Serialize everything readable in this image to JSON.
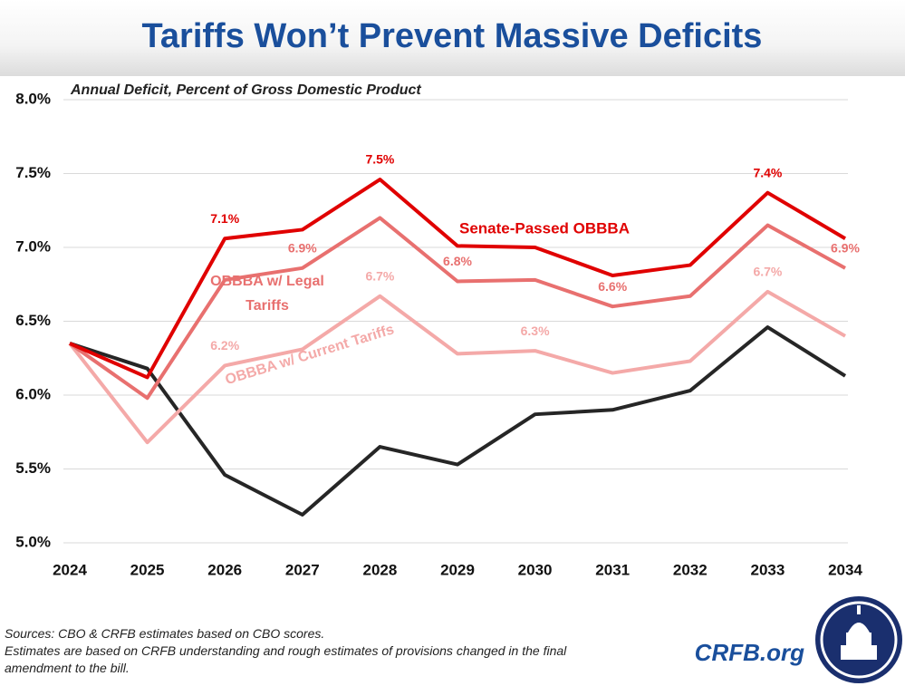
{
  "chart_data": {
    "type": "line",
    "title": "Tariffs Won’t Prevent Massive Deficits",
    "subtitle": "Annual Deficit, Percent of Gross Domestic Product",
    "categories": [
      "2024",
      "2025",
      "2026",
      "2027",
      "2028",
      "2029",
      "2030",
      "2031",
      "2032",
      "2033",
      "2034"
    ],
    "ylim": [
      5,
      8
    ],
    "yticks": [
      {
        "value": 5,
        "label": "5.0%"
      },
      {
        "value": 5.5,
        "label": "5.5%"
      },
      {
        "value": 6,
        "label": "6.0%"
      },
      {
        "value": 6.5,
        "label": "6.5%"
      },
      {
        "value": 7,
        "label": "7.0%"
      },
      {
        "value": 7.5,
        "label": "7.5%"
      },
      {
        "value": 8,
        "label": "8.0%"
      }
    ],
    "grid": true,
    "series": [
      {
        "name": "Senate-Passed OBBBA",
        "color": "#e00000",
        "values": [
          6.35,
          6.12,
          7.06,
          7.12,
          7.46,
          7.01,
          7.0,
          6.81,
          6.88,
          7.37,
          7.06
        ],
        "value_labels": [
          null,
          null,
          "7.1%",
          null,
          "7.5%",
          null,
          null,
          null,
          null,
          "7.4%",
          null
        ]
      },
      {
        "name": "OBBBA w/ Legal Tariffs",
        "color": "#e8706f",
        "values": [
          6.35,
          5.98,
          6.78,
          6.86,
          7.2,
          6.77,
          6.78,
          6.6,
          6.67,
          7.15,
          6.86
        ],
        "value_labels": [
          null,
          null,
          null,
          "6.9%",
          null,
          "6.8%",
          null,
          "6.6%",
          null,
          null,
          "6.9%"
        ]
      },
      {
        "name": "OBBBA w/ Current Tariffs",
        "color": "#f4a9a8",
        "values": [
          6.35,
          5.68,
          6.2,
          6.31,
          6.67,
          6.28,
          6.3,
          6.15,
          6.23,
          6.7,
          6.4
        ],
        "value_labels": [
          null,
          null,
          "6.2%",
          null,
          "6.7%",
          null,
          "6.3%",
          null,
          null,
          "6.7%",
          null
        ]
      },
      {
        "color": "#262626",
        "values": [
          6.35,
          6.18,
          5.46,
          5.19,
          5.65,
          5.53,
          5.87,
          5.9,
          6.03,
          6.46,
          6.13
        ]
      }
    ],
    "sources": "Sources: CBO & CRFB estimates based on CBO scores.",
    "notes": "Estimates are based on CRFB understanding and rough estimates of provisions changed in the final amendment to the bill.",
    "brand": "CRFB.org"
  }
}
